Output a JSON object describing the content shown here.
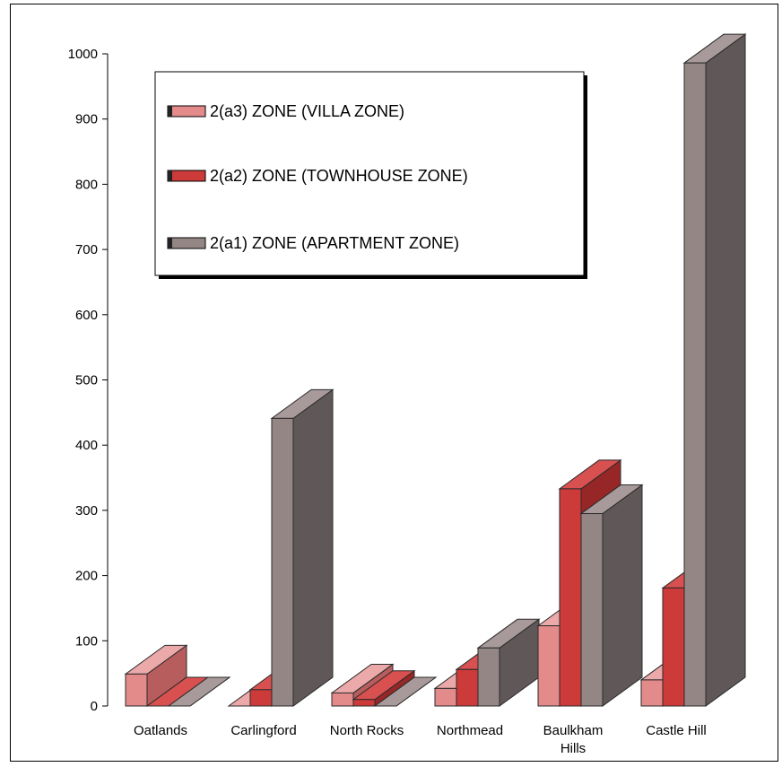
{
  "chart_data": {
    "type": "bar",
    "style": "3d-clustered",
    "categories": [
      [
        "Oatlands"
      ],
      [
        "Carlingford"
      ],
      [
        "North Rocks"
      ],
      [
        "Northmead"
      ],
      [
        "Baulkham",
        "Hills"
      ],
      [
        "Castle Hill"
      ]
    ],
    "series": [
      {
        "name": "2(a3) ZONE (VILLA ZONE)",
        "values": [
          49,
          0,
          20,
          27,
          123,
          40
        ],
        "front": "#e38a8a",
        "top": "#eba9a9",
        "side": "#b75d5d"
      },
      {
        "name": "2(a2) ZONE (TOWNHOUSE ZONE)",
        "values": [
          0,
          25,
          10,
          56,
          333,
          181
        ],
        "front": "#cc3a3a",
        "top": "#d85050",
        "side": "#972727"
      },
      {
        "name": "2(a1) ZONE (APARTMENT ZONE)",
        "values": [
          0,
          441,
          0,
          89,
          295,
          986
        ],
        "front": "#958686",
        "top": "#a89a9a",
        "side": "#605858"
      }
    ],
    "ylim": [
      0,
      1000
    ],
    "yticks": [
      0,
      100,
      200,
      300,
      400,
      500,
      600,
      700,
      800,
      900,
      1000
    ],
    "legend_position": "top-left",
    "grid": false,
    "title": "",
    "xlabel": "",
    "ylabel": ""
  }
}
